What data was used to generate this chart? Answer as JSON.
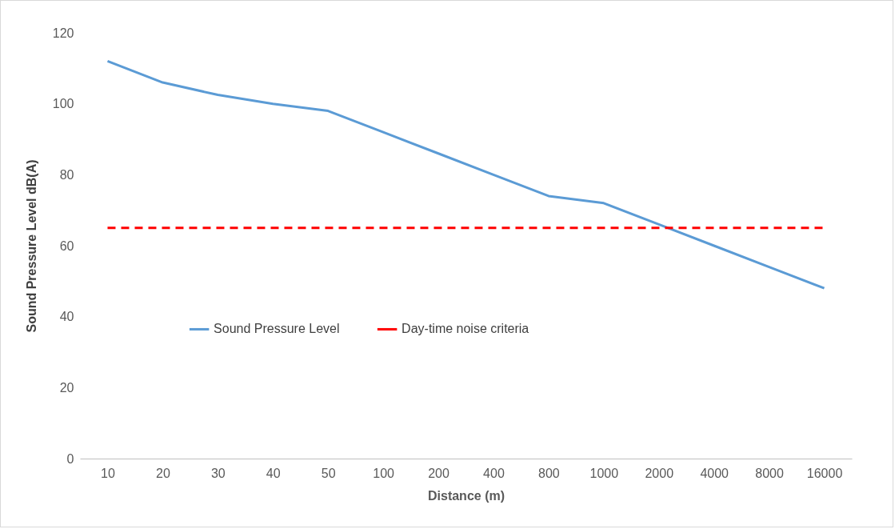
{
  "chart_data": {
    "type": "line",
    "xlabel": "Distance (m)",
    "ylabel": "Sound Pressure Level dB(A)",
    "categories": [
      "10",
      "20",
      "30",
      "40",
      "50",
      "100",
      "200",
      "400",
      "800",
      "1000",
      "2000",
      "4000",
      "8000",
      "16000"
    ],
    "series": [
      {
        "name": "Sound Pressure Level",
        "color": "#5b9bd5",
        "line_style": "solid",
        "values": [
          112,
          106,
          102.5,
          100,
          98,
          92,
          86,
          80,
          74,
          72,
          66,
          60,
          54,
          48
        ]
      },
      {
        "name": "Day-time noise criteria",
        "color": "#ff0000",
        "line_style": "dashed",
        "values": [
          65,
          65,
          65,
          65,
          65,
          65,
          65,
          65,
          65,
          65,
          65,
          65,
          65,
          65
        ]
      }
    ],
    "ylim": [
      0,
      120
    ],
    "yticks": [
      0,
      20,
      40,
      60,
      80,
      100,
      120
    ],
    "grid": false,
    "legend": "left",
    "marker": "none"
  }
}
